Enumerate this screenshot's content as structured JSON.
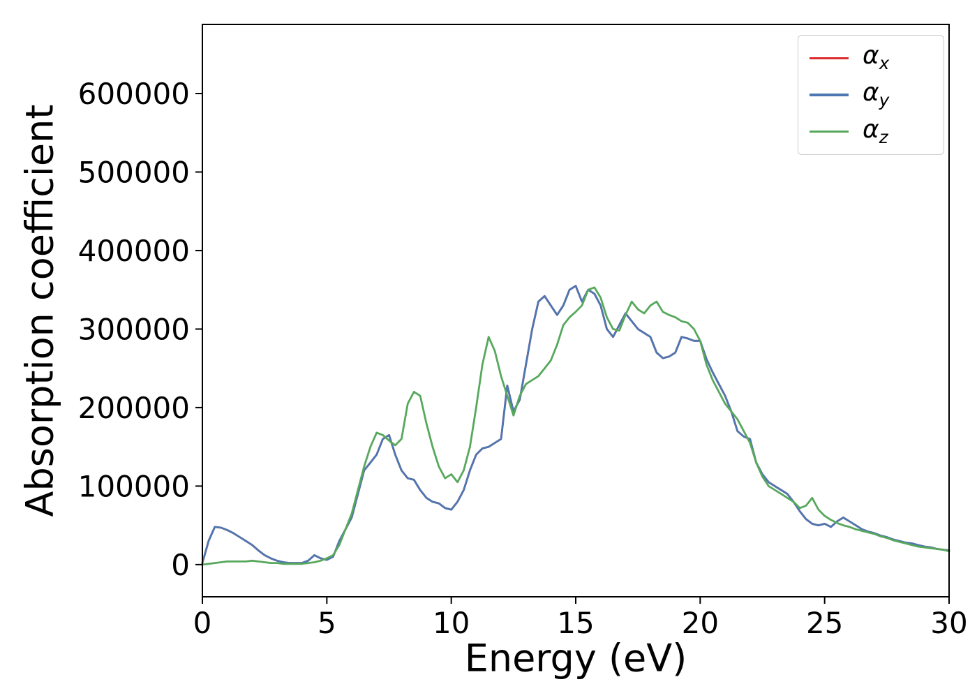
{
  "chart_data": {
    "type": "line",
    "title": "",
    "xlabel": "Energy (eV)",
    "ylabel": "Absorption coefficient",
    "xlim": [
      0,
      30
    ],
    "ylim": [
      -41000,
      688000
    ],
    "x_ticks": [
      0,
      5,
      10,
      15,
      20,
      25,
      30
    ],
    "y_ticks": [
      0,
      100000,
      200000,
      300000,
      400000,
      500000,
      600000
    ],
    "grid": false,
    "legend_position": "upper right",
    "x_start": 0,
    "x_step": 0.25,
    "series": [
      {
        "name": "alpha_x",
        "label": "α",
        "label_sub": "x",
        "color": "#dd2c2c",
        "note": "line coincides with alpha_y and is hidden beneath it",
        "values": [
          2000,
          30000,
          48000,
          47000,
          44000,
          40000,
          35000,
          30000,
          25000,
          18000,
          12000,
          8000,
          5000,
          3000,
          2000,
          2000,
          2000,
          5000,
          12000,
          8000,
          6000,
          10000,
          30000,
          45000,
          60000,
          90000,
          120000,
          130000,
          140000,
          160000,
          165000,
          140000,
          120000,
          110000,
          108000,
          95000,
          85000,
          80000,
          78000,
          72000,
          70000,
          80000,
          95000,
          120000,
          140000,
          148000,
          150000,
          155000,
          160000,
          228000,
          195000,
          210000,
          255000,
          300000,
          335000,
          342000,
          330000,
          318000,
          330000,
          350000,
          355000,
          335000,
          350000,
          345000,
          330000,
          300000,
          290000,
          305000,
          320000,
          310000,
          300000,
          295000,
          290000,
          270000,
          263000,
          265000,
          270000,
          290000,
          288000,
          285000,
          285000,
          262000,
          245000,
          230000,
          215000,
          195000,
          170000,
          163000,
          160000,
          130000,
          115000,
          105000,
          100000,
          95000,
          90000,
          80000,
          68000,
          58000,
          52000,
          50000,
          52000,
          48000,
          55000,
          60000,
          55000,
          50000,
          45000,
          42000,
          40000,
          37000,
          35000,
          32000,
          30000,
          28000,
          27000,
          25000,
          23000,
          22000,
          20000,
          19000,
          18000
        ]
      },
      {
        "name": "alpha_y",
        "label": "α",
        "label_sub": "y",
        "color": "#4d77b2",
        "values": [
          2000,
          30000,
          48000,
          47000,
          44000,
          40000,
          35000,
          30000,
          25000,
          18000,
          12000,
          8000,
          5000,
          3000,
          2000,
          2000,
          2000,
          5000,
          12000,
          8000,
          6000,
          10000,
          30000,
          45000,
          60000,
          90000,
          120000,
          130000,
          140000,
          160000,
          165000,
          140000,
          120000,
          110000,
          108000,
          95000,
          85000,
          80000,
          78000,
          72000,
          70000,
          80000,
          95000,
          120000,
          140000,
          148000,
          150000,
          155000,
          160000,
          228000,
          195000,
          210000,
          255000,
          300000,
          335000,
          342000,
          330000,
          318000,
          330000,
          350000,
          355000,
          335000,
          350000,
          345000,
          330000,
          300000,
          290000,
          305000,
          320000,
          310000,
          300000,
          295000,
          290000,
          270000,
          263000,
          265000,
          270000,
          290000,
          288000,
          285000,
          285000,
          262000,
          245000,
          230000,
          215000,
          195000,
          170000,
          163000,
          160000,
          130000,
          115000,
          105000,
          100000,
          95000,
          90000,
          80000,
          68000,
          58000,
          52000,
          50000,
          52000,
          48000,
          55000,
          60000,
          55000,
          50000,
          45000,
          42000,
          40000,
          37000,
          35000,
          32000,
          30000,
          28000,
          27000,
          25000,
          23000,
          22000,
          20000,
          19000,
          18000
        ]
      },
      {
        "name": "alpha_z",
        "label": "α",
        "label_sub": "z",
        "color": "#57a85c",
        "values": [
          0,
          1000,
          2000,
          3000,
          4000,
          4000,
          4000,
          4000,
          5000,
          4000,
          3000,
          2000,
          2000,
          1000,
          1000,
          1000,
          1000,
          2000,
          3000,
          5000,
          8000,
          12000,
          25000,
          45000,
          65000,
          95000,
          125000,
          150000,
          168000,
          165000,
          158000,
          152000,
          160000,
          205000,
          220000,
          215000,
          180000,
          150000,
          125000,
          110000,
          115000,
          105000,
          120000,
          150000,
          200000,
          255000,
          290000,
          272000,
          240000,
          215000,
          190000,
          215000,
          230000,
          235000,
          240000,
          250000,
          260000,
          280000,
          305000,
          315000,
          322000,
          330000,
          350000,
          353000,
          340000,
          315000,
          300000,
          298000,
          318000,
          335000,
          325000,
          320000,
          330000,
          335000,
          322000,
          318000,
          315000,
          310000,
          308000,
          300000,
          285000,
          255000,
          235000,
          220000,
          205000,
          195000,
          185000,
          170000,
          155000,
          130000,
          112000,
          100000,
          95000,
          90000,
          85000,
          80000,
          72000,
          75000,
          85000,
          70000,
          62000,
          57000,
          53000,
          50000,
          48000,
          45000,
          43000,
          41000,
          39000,
          36000,
          34000,
          31000,
          29000,
          27000,
          25000,
          23000,
          22000,
          21000,
          20000,
          19000,
          17000
        ]
      }
    ]
  }
}
